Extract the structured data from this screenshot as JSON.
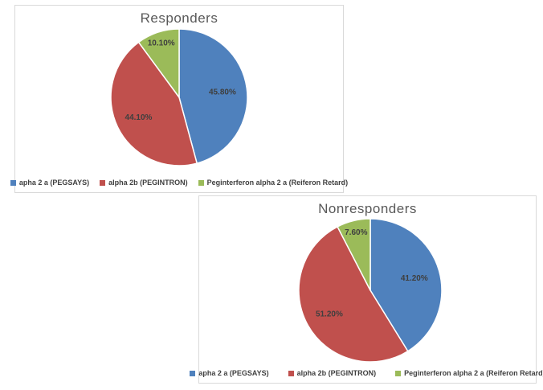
{
  "colors": {
    "blue": "#4F81BD",
    "red": "#C0504D",
    "green": "#9BBB59",
    "title_gray": "#595959",
    "label_dark": "#3F3F3F",
    "box_border": "#D9D9D9"
  },
  "chart_data": [
    {
      "type": "pie",
      "title": "Responders",
      "legend_position": "bottom",
      "start_angle_deg": 0,
      "direction": "clockwise",
      "series": [
        {
          "label": "apha 2 a (PEGSAYS)",
          "value": 45.8,
          "display": "45.80%",
          "color": "#4F81BD"
        },
        {
          "label": "alpha 2b (PEGINTRON)",
          "value": 44.1,
          "display": "44.10%",
          "color": "#C0504D"
        },
        {
          "label": "Peginterferon alpha 2 a (Reiferon Retard)",
          "value": 10.1,
          "display": "10.10%",
          "color": "#9BBB59"
        }
      ]
    },
    {
      "type": "pie",
      "title": "Nonresponders",
      "legend_position": "bottom",
      "start_angle_deg": 0,
      "direction": "clockwise",
      "series": [
        {
          "label": "apha 2 a (PEGSAYS)",
          "value": 41.2,
          "display": "41.20%",
          "color": "#4F81BD"
        },
        {
          "label": "alpha 2b (PEGINTRON)",
          "value": 51.2,
          "display": "51.20%",
          "color": "#C0504D"
        },
        {
          "label": "Peginterferon alpha 2 a (Reiferon Retard)",
          "value": 7.6,
          "display": "7.60%",
          "color": "#9BBB59"
        }
      ]
    }
  ]
}
